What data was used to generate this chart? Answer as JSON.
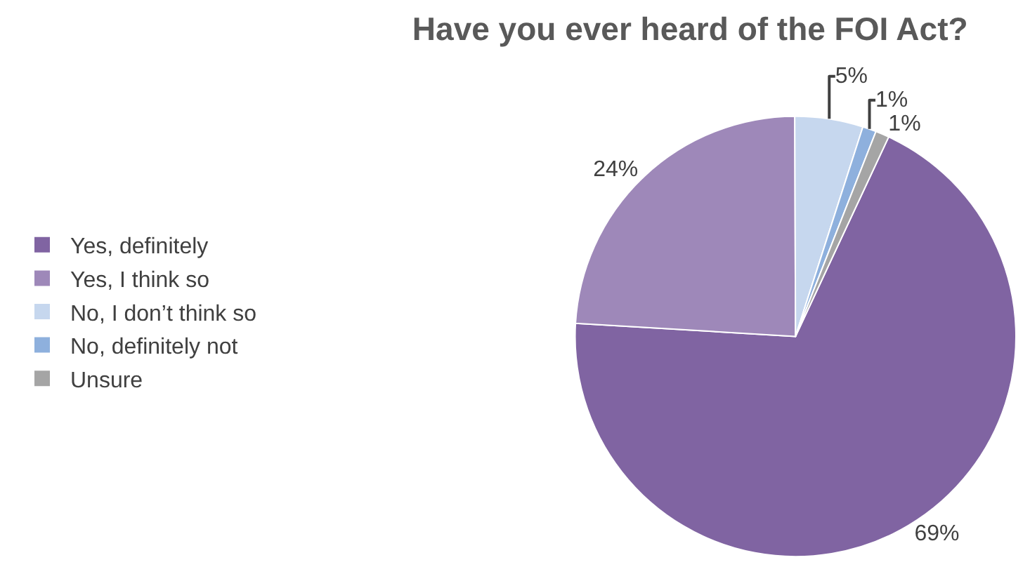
{
  "chart_data": {
    "type": "pie",
    "title": "Have you ever heard of the FOI Act?",
    "categories": [
      "Yes, definitely",
      "Yes, I think so",
      "No, I don’t think so",
      "No, definitely not",
      "Unsure"
    ],
    "values": [
      69,
      24,
      5,
      1,
      1
    ],
    "value_labels": [
      "69%",
      "24%",
      "5%",
      "1%",
      "1%"
    ],
    "colors": [
      "#8064a2",
      "#9e88b9",
      "#c6d7ee",
      "#8eb0dd",
      "#a5a5a5"
    ],
    "legend": "left"
  }
}
